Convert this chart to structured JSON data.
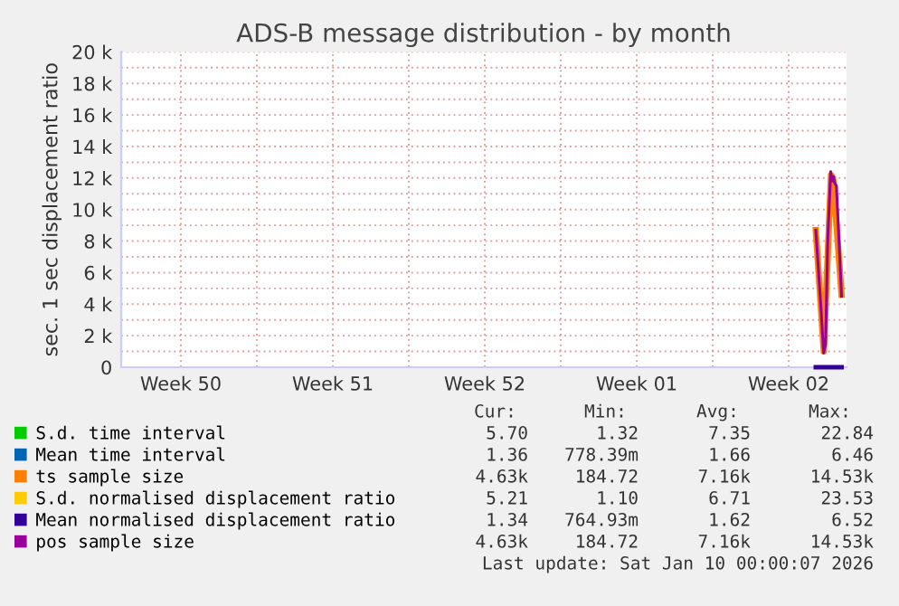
{
  "chart_data": {
    "type": "line",
    "title": "ADS-B message distribution - by month",
    "ylabel": "sec. 1 sec displacement ratio",
    "xlim": [
      "2025-12-07T18:00",
      "2026-01-10T04:00"
    ],
    "ylim": [
      0,
      20000
    ],
    "xticks": [
      {
        "value": "2025-12-10T12:00",
        "label": "Week 50"
      },
      {
        "value": "2025-12-14",
        "label": null
      },
      {
        "value": "2025-12-17T12:00",
        "label": "Week 51"
      },
      {
        "value": "2025-12-21",
        "label": null
      },
      {
        "value": "2025-12-24T12:00",
        "label": "Week 52"
      },
      {
        "value": "2025-12-28",
        "label": null
      },
      {
        "value": "2025-12-31T12:00",
        "label": "Week 01"
      },
      {
        "value": "2026-01-04",
        "label": null
      },
      {
        "value": "2026-01-07T12:00",
        "label": "Week 02"
      }
    ],
    "yticks": [
      0,
      {
        "value": 1000,
        "label": null
      },
      {
        "value": 2000,
        "label": "2 k"
      },
      {
        "value": 3000,
        "label": null
      },
      {
        "value": 4000,
        "label": "4 k"
      },
      {
        "value": 5000,
        "label": null
      },
      {
        "value": 6000,
        "label": "6 k"
      },
      {
        "value": 7000,
        "label": null
      },
      {
        "value": 8000,
        "label": "8 k"
      },
      {
        "value": 9000,
        "label": null
      },
      {
        "value": 10000,
        "label": "10 k"
      },
      {
        "value": 11000,
        "label": null
      },
      {
        "value": 12000,
        "label": "12 k"
      },
      {
        "value": 13000,
        "label": null
      },
      {
        "value": 14000,
        "label": "14 k"
      },
      {
        "value": 15000,
        "label": null
      },
      {
        "value": 16000,
        "label": "16 k"
      },
      {
        "value": 17000,
        "label": null
      },
      {
        "value": 18000,
        "label": "18 k"
      },
      {
        "value": 19000,
        "label": null
      },
      {
        "value": 20000,
        "label": "20 k"
      }
    ],
    "grid": true,
    "legend": "bottom",
    "marker": "none",
    "line_style": "solid",
    "series": [
      {
        "name": "S.d. time interval",
        "color": "#00cc00"
      },
      {
        "name": "Mean time interval",
        "color": "#0066b3"
      },
      {
        "name": "ts sample size",
        "color": "#ff8000",
        "x": [
          "2026-01-08T18:00",
          "2026-01-09T02:50",
          "2026-01-09T10:50",
          "2026-01-09T13:10",
          "2026-01-09T22:30"
        ],
        "values": [
          8700,
          1000,
          12200,
          12000,
          4600
        ]
      },
      {
        "name": "S.d. normalised displacement ratio",
        "color": "#ffcc00"
      },
      {
        "name": "Mean normalised displacement ratio",
        "color": "#330099",
        "x": [
          "2026-01-08T18:00",
          "2026-01-09T22:30"
        ],
        "values": [
          0,
          0
        ]
      },
      {
        "name": "pos sample size",
        "color": "#990099",
        "x": [
          "2026-01-08T18:00",
          "2026-01-09T00:00",
          "2026-01-09T02:40",
          "2026-01-09T04:50",
          "2026-01-09T07:10",
          "2026-01-09T10:30",
          "2026-01-09T12:00",
          "2026-01-09T13:30",
          "2026-01-09T14:50",
          "2026-01-09T16:50",
          "2026-01-09T22:30"
        ],
        "values": [
          8700,
          3500,
          900,
          1500,
          8000,
          12400,
          11800,
          12100,
          11700,
          11500,
          4500
        ]
      }
    ],
    "annotations": [
      "Cur:",
      "Min:",
      "Avg:",
      "Max:",
      "5.70",
      "1.32",
      "7.35",
      "22.84",
      "1.36",
      "778.39m",
      "1.66",
      "6.46",
      "4.63k",
      "184.72",
      "7.16k",
      "14.53k",
      "5.21",
      "1.10",
      "6.71",
      "23.53",
      "1.34",
      "764.93m",
      "1.62",
      "6.52",
      "4.63k",
      "184.72",
      "7.16k",
      "14.53k",
      "Last update: Sat Jan 10 00:00:07 2026"
    ]
  }
}
